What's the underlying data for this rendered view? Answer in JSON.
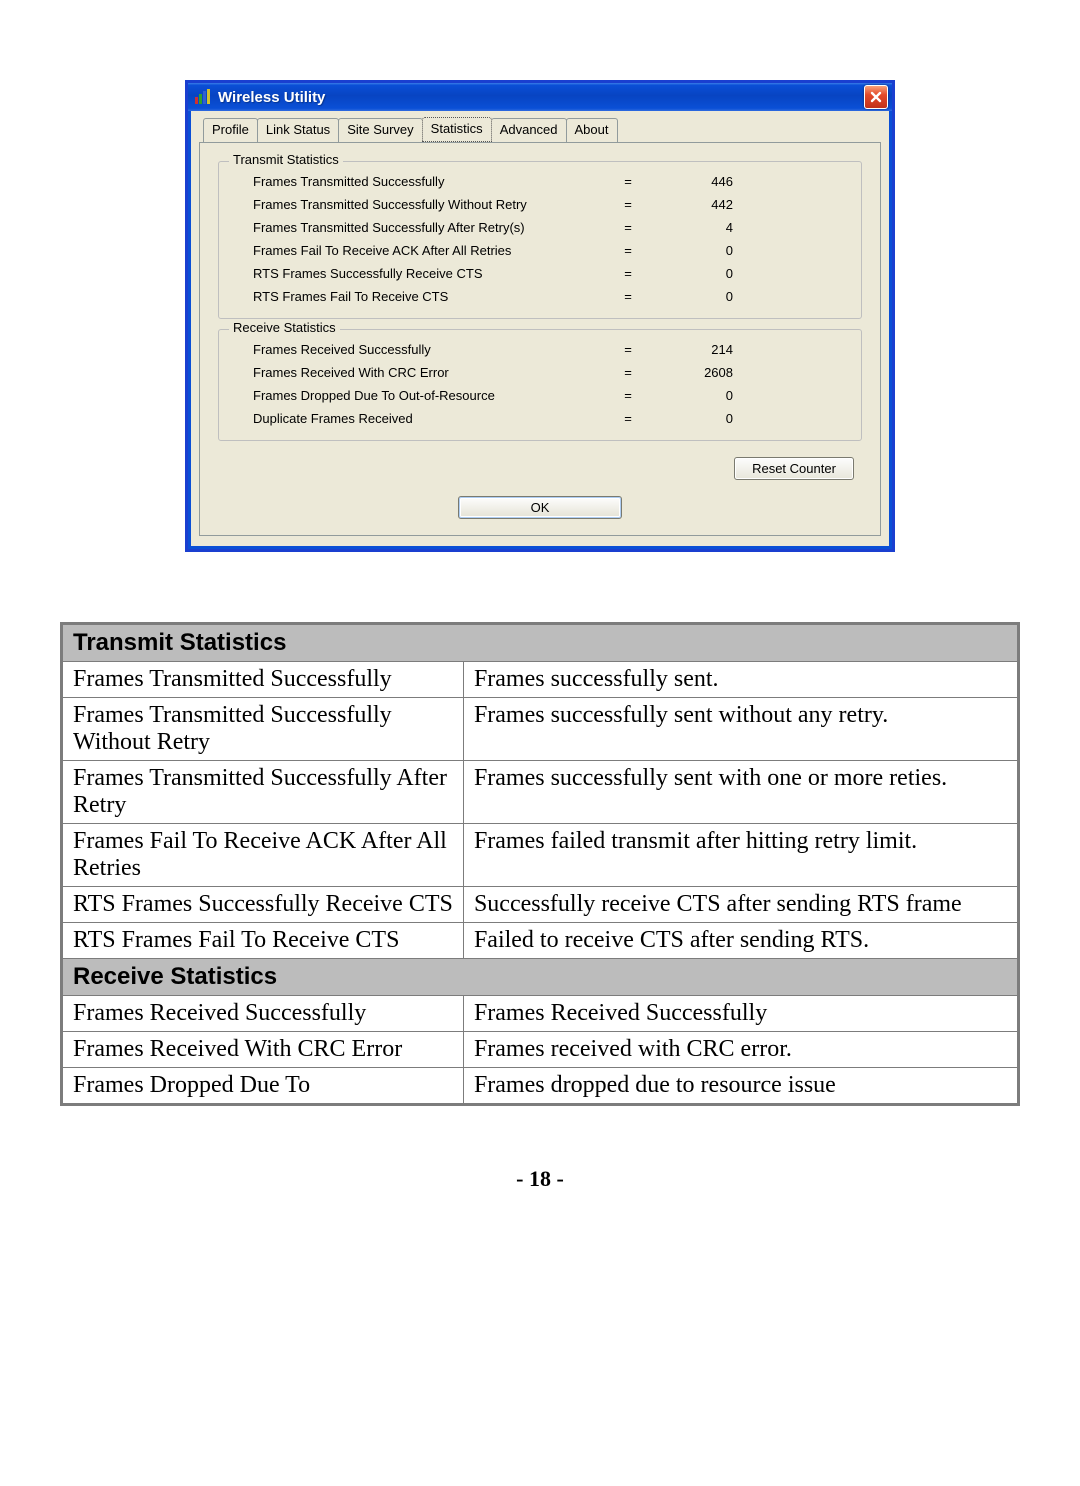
{
  "window": {
    "title": "Wireless Utility",
    "tabs": [
      "Profile",
      "Link Status",
      "Site Survey",
      "Statistics",
      "Advanced",
      "About"
    ],
    "active_tab_index": 3,
    "transmit_legend": "Transmit Statistics",
    "receive_legend": "Receive Statistics",
    "transmit_rows": [
      {
        "label": "Frames Transmitted Successfully",
        "value": "446"
      },
      {
        "label": "Frames Transmitted Successfully  Without Retry",
        "value": "442"
      },
      {
        "label": "Frames Transmitted Successfully After Retry(s)",
        "value": "4"
      },
      {
        "label": "Frames Fail To Receive ACK After All Retries",
        "value": "0"
      },
      {
        "label": "RTS Frames Successfully Receive CTS",
        "value": "0"
      },
      {
        "label": "RTS Frames Fail To Receive CTS",
        "value": "0"
      }
    ],
    "receive_rows": [
      {
        "label": "Frames Received Successfully",
        "value": "214"
      },
      {
        "label": "Frames Received With CRC Error",
        "value": "2608"
      },
      {
        "label": "Frames Dropped Due To Out-of-Resource",
        "value": "0"
      },
      {
        "label": "Duplicate Frames Received",
        "value": "0"
      }
    ],
    "reset_button": "Reset Counter",
    "ok_button": "OK"
  },
  "desc": {
    "section1": "Transmit Statistics",
    "section2": "Receive Statistics",
    "rows1": [
      {
        "k": "Frames Transmitted Successfully",
        "v": "Frames successfully sent."
      },
      {
        "k": "Frames Transmitted Successfully Without Retry",
        "v": "Frames successfully sent without any retry."
      },
      {
        "k": "Frames Transmitted Successfully After Retry",
        "v": "Frames successfully sent with one or more reties."
      },
      {
        "k": "Frames Fail To Receive ACK After All Retries",
        "v": "Frames failed transmit after hitting retry limit."
      },
      {
        "k": "RTS Frames Successfully Receive CTS",
        "v": "Successfully receive CTS after sending RTS frame"
      },
      {
        "k": "RTS Frames Fail To Receive CTS",
        "v": "Failed to receive CTS after sending RTS."
      }
    ],
    "rows2": [
      {
        "k": "Frames Received Successfully",
        "v": "Frames Received Successfully"
      },
      {
        "k": "Frames Received With CRC Error",
        "v": "Frames received with CRC error."
      },
      {
        "k": "Frames Dropped Due To",
        "v": "Frames dropped due to resource issue"
      }
    ]
  },
  "page_number": "- 18 -",
  "colors": {
    "xp_blue": "#0a4fd6",
    "xp_face": "#ece9d8",
    "table_border": "#7c7c7c",
    "section_bg": "#bcbcbc"
  }
}
